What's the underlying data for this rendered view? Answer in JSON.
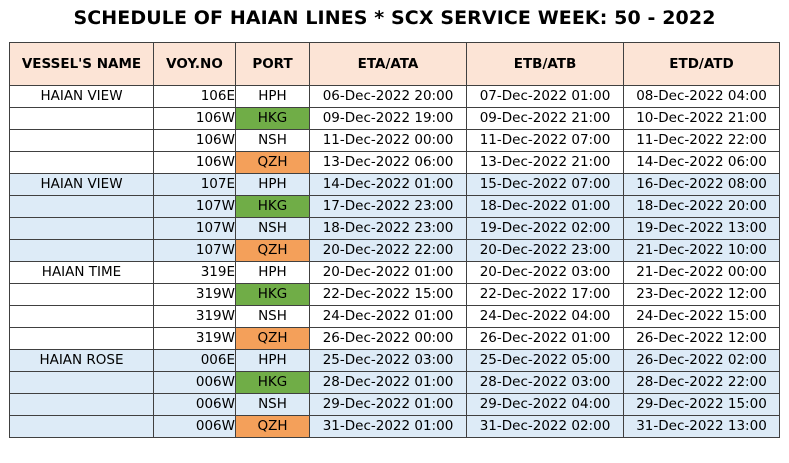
{
  "title": "SCHEDULE OF HAIAN LINES * SCX SERVICE WEEK: 50 - 2022",
  "headers": {
    "vessel": "VESSEL'S NAME",
    "voy": "VOY.NO",
    "port": "PORT",
    "eta": "ETA/ATA",
    "etb": "ETB/ATB",
    "etd": "ETD/ATD"
  },
  "colors": {
    "header_bg": "#fce4d6",
    "group_alt_bg": "#ddebf7",
    "hkg_bg": "#70ad47",
    "qzh_bg": "#f4a05a"
  },
  "rows": [
    {
      "vessel": "HAIAN VIEW",
      "voy": "106E",
      "port": "HPH",
      "eta": "06-Dec-2022 20:00",
      "etb": "07-Dec-2022 01:00",
      "etd": "08-Dec-2022 04:00"
    },
    {
      "vessel": "",
      "voy": "106W",
      "port": "HKG",
      "eta": "09-Dec-2022 19:00",
      "etb": "09-Dec-2022 21:00",
      "etd": "10-Dec-2022 21:00"
    },
    {
      "vessel": "",
      "voy": "106W",
      "port": "NSH",
      "eta": "11-Dec-2022 00:00",
      "etb": "11-Dec-2022 07:00",
      "etd": "11-Dec-2022 22:00"
    },
    {
      "vessel": "",
      "voy": "106W",
      "port": "QZH",
      "eta": "13-Dec-2022 06:00",
      "etb": "13-Dec-2022 21:00",
      "etd": "14-Dec-2022 06:00"
    },
    {
      "vessel": "HAIAN VIEW",
      "voy": "107E",
      "port": "HPH",
      "eta": "14-Dec-2022 01:00",
      "etb": "15-Dec-2022 07:00",
      "etd": "16-Dec-2022 08:00"
    },
    {
      "vessel": "",
      "voy": "107W",
      "port": "HKG",
      "eta": "17-Dec-2022 23:00",
      "etb": "18-Dec-2022 01:00",
      "etd": "18-Dec-2022 20:00"
    },
    {
      "vessel": "",
      "voy": "107W",
      "port": "NSH",
      "eta": "18-Dec-2022 23:00",
      "etb": "19-Dec-2022 02:00",
      "etd": "19-Dec-2022 13:00"
    },
    {
      "vessel": "",
      "voy": "107W",
      "port": "QZH",
      "eta": "20-Dec-2022 22:00",
      "etb": "20-Dec-2022 23:00",
      "etd": "21-Dec-2022 10:00"
    },
    {
      "vessel": "HAIAN TIME",
      "voy": "319E",
      "port": "HPH",
      "eta": "20-Dec-2022 01:00",
      "etb": "20-Dec-2022 03:00",
      "etd": "21-Dec-2022 00:00"
    },
    {
      "vessel": "",
      "voy": "319W",
      "port": "HKG",
      "eta": "22-Dec-2022 15:00",
      "etb": "22-Dec-2022 17:00",
      "etd": "23-Dec-2022 12:00"
    },
    {
      "vessel": "",
      "voy": "319W",
      "port": "NSH",
      "eta": "24-Dec-2022 01:00",
      "etb": "24-Dec-2022 04:00",
      "etd": "24-Dec-2022 15:00"
    },
    {
      "vessel": "",
      "voy": "319W",
      "port": "QZH",
      "eta": "26-Dec-2022 00:00",
      "etb": "26-Dec-2022 01:00",
      "etd": "26-Dec-2022 12:00"
    },
    {
      "vessel": "HAIAN ROSE",
      "voy": "006E",
      "port": "HPH",
      "eta": "25-Dec-2022 03:00",
      "etb": "25-Dec-2022 05:00",
      "etd": "26-Dec-2022 02:00"
    },
    {
      "vessel": "",
      "voy": "006W",
      "port": "HKG",
      "eta": "28-Dec-2022 01:00",
      "etb": "28-Dec-2022 03:00",
      "etd": "28-Dec-2022 22:00"
    },
    {
      "vessel": "",
      "voy": "006W",
      "port": "NSH",
      "eta": "29-Dec-2022 01:00",
      "etb": "29-Dec-2022 04:00",
      "etd": "29-Dec-2022 15:00"
    },
    {
      "vessel": "",
      "voy": "006W",
      "port": "QZH",
      "eta": "31-Dec-2022 01:00",
      "etb": "31-Dec-2022 02:00",
      "etd": "31-Dec-2022 13:00"
    }
  ]
}
